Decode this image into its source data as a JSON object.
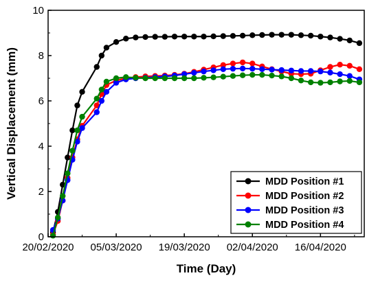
{
  "chart_data": {
    "type": "line",
    "title": "",
    "xlabel": "Time (Day)",
    "ylabel": "Vertical Displacement (mm)",
    "x_ticks": [
      "20/02/2020",
      "05/03/2020",
      "19/03/2020",
      "02/04/2020",
      "16/04/2020"
    ],
    "y_ticks": [
      "0",
      "2",
      "4",
      "6",
      "8",
      "10"
    ],
    "xlim": [
      "2020-02-20",
      "2020-04-25"
    ],
    "ylim": [
      0,
      10
    ],
    "grid": false,
    "legend_position": "bottom-right",
    "series": [
      {
        "name": "MDD Position #1",
        "color": "#000000",
        "x": [
          "2020-02-21",
          "2020-02-22",
          "2020-02-23",
          "2020-02-24",
          "2020-02-25",
          "2020-02-26",
          "2020-02-27",
          "2020-03-01",
          "2020-03-02",
          "2020-03-03",
          "2020-03-05",
          "2020-03-07",
          "2020-03-09",
          "2020-03-11",
          "2020-03-13",
          "2020-03-15",
          "2020-03-17",
          "2020-03-19",
          "2020-03-21",
          "2020-03-23",
          "2020-03-25",
          "2020-03-27",
          "2020-03-29",
          "2020-03-31",
          "2020-04-02",
          "2020-04-04",
          "2020-04-06",
          "2020-04-08",
          "2020-04-10",
          "2020-04-12",
          "2020-04-14",
          "2020-04-16",
          "2020-04-18",
          "2020-04-20",
          "2020-04-22",
          "2020-04-24"
        ],
        "values": [
          0.2,
          1.1,
          2.3,
          3.5,
          4.7,
          5.8,
          6.4,
          7.5,
          8.0,
          8.35,
          8.6,
          8.75,
          8.8,
          8.82,
          8.83,
          8.83,
          8.84,
          8.84,
          8.84,
          8.84,
          8.85,
          8.86,
          8.87,
          8.88,
          8.9,
          8.91,
          8.92,
          8.92,
          8.92,
          8.9,
          8.88,
          8.84,
          8.8,
          8.74,
          8.67,
          8.55
        ]
      },
      {
        "name": "MDD Position #2",
        "color": "#ff0000",
        "x": [
          "2020-02-21",
          "2020-02-22",
          "2020-02-23",
          "2020-02-24",
          "2020-02-25",
          "2020-02-26",
          "2020-02-27",
          "2020-03-01",
          "2020-03-02",
          "2020-03-03",
          "2020-03-05",
          "2020-03-07",
          "2020-03-09",
          "2020-03-11",
          "2020-03-13",
          "2020-03-15",
          "2020-03-17",
          "2020-03-19",
          "2020-03-21",
          "2020-03-23",
          "2020-03-25",
          "2020-03-27",
          "2020-03-29",
          "2020-03-31",
          "2020-04-02",
          "2020-04-04",
          "2020-04-06",
          "2020-04-08",
          "2020-04-10",
          "2020-04-12",
          "2020-04-14",
          "2020-04-16",
          "2020-04-18",
          "2020-04-20",
          "2020-04-22",
          "2020-04-24"
        ],
        "values": [
          0.1,
          0.7,
          1.6,
          2.6,
          3.5,
          4.3,
          4.9,
          5.8,
          6.3,
          6.7,
          6.9,
          7.0,
          7.05,
          7.08,
          7.1,
          7.12,
          7.15,
          7.2,
          7.28,
          7.38,
          7.48,
          7.58,
          7.65,
          7.7,
          7.65,
          7.52,
          7.4,
          7.3,
          7.2,
          7.18,
          7.2,
          7.35,
          7.5,
          7.6,
          7.55,
          7.4
        ]
      },
      {
        "name": "MDD Position #3",
        "color": "#0000ff",
        "x": [
          "2020-02-21",
          "2020-02-22",
          "2020-02-23",
          "2020-02-24",
          "2020-02-25",
          "2020-02-26",
          "2020-02-27",
          "2020-03-01",
          "2020-03-02",
          "2020-03-03",
          "2020-03-05",
          "2020-03-07",
          "2020-03-09",
          "2020-03-11",
          "2020-03-13",
          "2020-03-15",
          "2020-03-17",
          "2020-03-19",
          "2020-03-21",
          "2020-03-23",
          "2020-03-25",
          "2020-03-27",
          "2020-03-29",
          "2020-03-31",
          "2020-04-02",
          "2020-04-04",
          "2020-04-06",
          "2020-04-08",
          "2020-04-10",
          "2020-04-12",
          "2020-04-14",
          "2020-04-16",
          "2020-04-18",
          "2020-04-20",
          "2020-04-22",
          "2020-04-24"
        ],
        "values": [
          0.3,
          0.8,
          1.6,
          2.5,
          3.4,
          4.2,
          4.8,
          5.5,
          6.0,
          6.4,
          6.8,
          6.95,
          7.0,
          7.02,
          7.05,
          7.08,
          7.12,
          7.18,
          7.24,
          7.3,
          7.35,
          7.4,
          7.42,
          7.43,
          7.42,
          7.4,
          7.38,
          7.36,
          7.34,
          7.32,
          7.32,
          7.3,
          7.25,
          7.18,
          7.1,
          6.95
        ]
      },
      {
        "name": "MDD Position #4",
        "color": "#008000",
        "x": [
          "2020-02-21",
          "2020-02-22",
          "2020-02-23",
          "2020-02-24",
          "2020-02-25",
          "2020-02-26",
          "2020-02-27",
          "2020-03-01",
          "2020-03-02",
          "2020-03-03",
          "2020-03-05",
          "2020-03-07",
          "2020-03-09",
          "2020-03-11",
          "2020-03-13",
          "2020-03-15",
          "2020-03-17",
          "2020-03-19",
          "2020-03-21",
          "2020-03-23",
          "2020-03-25",
          "2020-03-27",
          "2020-03-29",
          "2020-03-31",
          "2020-04-02",
          "2020-04-04",
          "2020-04-06",
          "2020-04-08",
          "2020-04-10",
          "2020-04-12",
          "2020-04-14",
          "2020-04-16",
          "2020-04-18",
          "2020-04-20",
          "2020-04-22",
          "2020-04-24"
        ],
        "values": [
          0.05,
          0.85,
          1.8,
          2.8,
          3.8,
          4.7,
          5.3,
          6.1,
          6.5,
          6.85,
          7.0,
          7.05,
          7.02,
          7.0,
          7.0,
          7.0,
          7.0,
          7.0,
          7.0,
          7.02,
          7.04,
          7.07,
          7.1,
          7.13,
          7.15,
          7.15,
          7.12,
          7.08,
          7.0,
          6.9,
          6.82,
          6.8,
          6.82,
          6.86,
          6.88,
          6.82
        ]
      }
    ]
  }
}
